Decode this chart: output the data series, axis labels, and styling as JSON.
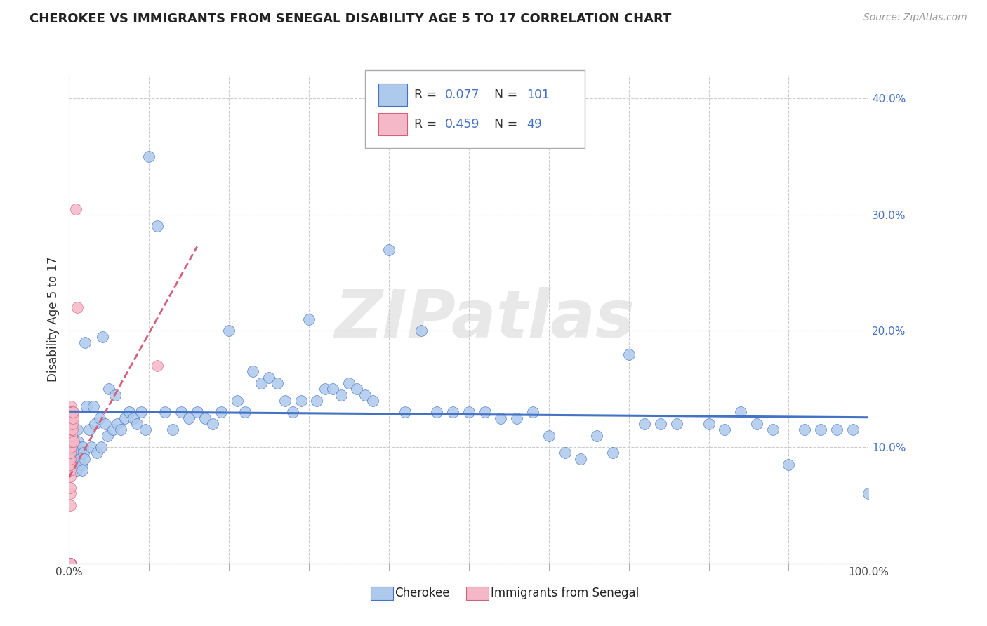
{
  "title": "CHEROKEE VS IMMIGRANTS FROM SENEGAL DISABILITY AGE 5 TO 17 CORRELATION CHART",
  "source": "Source: ZipAtlas.com",
  "ylabel": "Disability Age 5 to 17",
  "xlim": [
    0.0,
    1.0
  ],
  "ylim": [
    0.0,
    0.42
  ],
  "cherokee_R": 0.077,
  "cherokee_N": 101,
  "senegal_R": 0.459,
  "senegal_N": 49,
  "cherokee_color": "#adc9eb",
  "senegal_color": "#f5b8c8",
  "cherokee_line_color": "#4472c4",
  "senegal_line_color": "#d4607a",
  "legend_label_cherokee": "Cherokee",
  "legend_label_senegal": "Immigrants from Senegal",
  "watermark": "ZIPatlas",
  "cherokee_x": [
    0.002,
    0.003,
    0.004,
    0.005,
    0.006,
    0.007,
    0.008,
    0.009,
    0.01,
    0.011,
    0.012,
    0.013,
    0.014,
    0.015,
    0.016,
    0.017,
    0.018,
    0.019,
    0.02,
    0.022,
    0.025,
    0.028,
    0.03,
    0.032,
    0.035,
    0.038,
    0.04,
    0.042,
    0.045,
    0.048,
    0.05,
    0.055,
    0.058,
    0.06,
    0.065,
    0.07,
    0.075,
    0.08,
    0.085,
    0.09,
    0.095,
    0.1,
    0.11,
    0.12,
    0.13,
    0.14,
    0.15,
    0.16,
    0.17,
    0.18,
    0.19,
    0.2,
    0.21,
    0.22,
    0.23,
    0.24,
    0.25,
    0.26,
    0.27,
    0.28,
    0.29,
    0.3,
    0.31,
    0.32,
    0.33,
    0.34,
    0.35,
    0.36,
    0.37,
    0.38,
    0.4,
    0.42,
    0.44,
    0.46,
    0.48,
    0.5,
    0.52,
    0.54,
    0.56,
    0.58,
    0.6,
    0.62,
    0.64,
    0.66,
    0.68,
    0.7,
    0.72,
    0.74,
    0.76,
    0.8,
    0.82,
    0.84,
    0.86,
    0.88,
    0.9,
    0.92,
    0.94,
    0.96,
    0.98,
    1.0,
    0.001
  ],
  "cherokee_y": [
    0.115,
    0.105,
    0.1,
    0.095,
    0.095,
    0.09,
    0.085,
    0.08,
    0.115,
    0.105,
    0.1,
    0.095,
    0.09,
    0.085,
    0.08,
    0.1,
    0.095,
    0.09,
    0.19,
    0.135,
    0.115,
    0.1,
    0.135,
    0.12,
    0.095,
    0.125,
    0.1,
    0.195,
    0.12,
    0.11,
    0.15,
    0.115,
    0.145,
    0.12,
    0.115,
    0.125,
    0.13,
    0.125,
    0.12,
    0.13,
    0.115,
    0.35,
    0.29,
    0.13,
    0.115,
    0.13,
    0.125,
    0.13,
    0.125,
    0.12,
    0.13,
    0.2,
    0.14,
    0.13,
    0.165,
    0.155,
    0.16,
    0.155,
    0.14,
    0.13,
    0.14,
    0.21,
    0.14,
    0.15,
    0.15,
    0.145,
    0.155,
    0.15,
    0.145,
    0.14,
    0.27,
    0.13,
    0.2,
    0.13,
    0.13,
    0.13,
    0.13,
    0.125,
    0.125,
    0.13,
    0.11,
    0.095,
    0.09,
    0.11,
    0.095,
    0.18,
    0.12,
    0.12,
    0.12,
    0.12,
    0.115,
    0.13,
    0.12,
    0.115,
    0.085,
    0.115,
    0.115,
    0.115,
    0.115,
    0.06,
    0.11
  ],
  "senegal_x": [
    0.001,
    0.001,
    0.001,
    0.001,
    0.001,
    0.001,
    0.001,
    0.001,
    0.001,
    0.001,
    0.001,
    0.001,
    0.001,
    0.001,
    0.001,
    0.001,
    0.001,
    0.001,
    0.001,
    0.001,
    0.001,
    0.001,
    0.001,
    0.001,
    0.001,
    0.002,
    0.002,
    0.002,
    0.002,
    0.002,
    0.002,
    0.002,
    0.002,
    0.002,
    0.002,
    0.002,
    0.003,
    0.003,
    0.003,
    0.003,
    0.004,
    0.004,
    0.004,
    0.005,
    0.005,
    0.006,
    0.008,
    0.01,
    0.11
  ],
  "senegal_y": [
    0.0,
    0.0,
    0.0,
    0.0,
    0.0,
    0.0,
    0.0,
    0.0,
    0.0,
    0.0,
    0.0,
    0.0,
    0.0,
    0.0,
    0.0,
    0.0,
    0.05,
    0.06,
    0.065,
    0.075,
    0.08,
    0.085,
    0.09,
    0.095,
    0.1,
    0.1,
    0.105,
    0.11,
    0.115,
    0.12,
    0.125,
    0.13,
    0.135,
    0.115,
    0.12,
    0.13,
    0.11,
    0.115,
    0.12,
    0.125,
    0.115,
    0.12,
    0.13,
    0.125,
    0.13,
    0.105,
    0.305,
    0.22,
    0.17
  ]
}
